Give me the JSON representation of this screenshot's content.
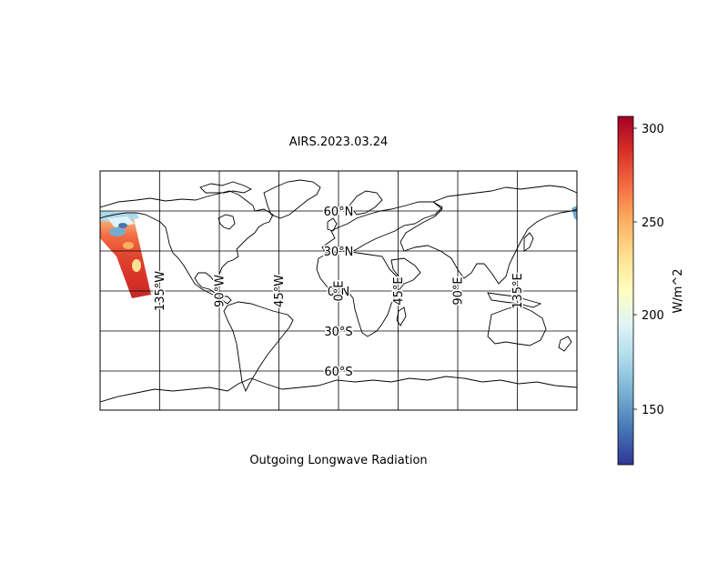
{
  "title": "AIRS.2023.03.24",
  "xlabel": "Outgoing Longwave Radiation",
  "graticule": {
    "lat_labels": [
      "60°N",
      "30°N",
      "0°N",
      "30°S",
      "60°S"
    ],
    "lon_labels": [
      "135°W",
      "90°W",
      "45°W",
      "0°E",
      "45°E",
      "90°E",
      "135°E"
    ]
  },
  "colorbar": {
    "label": "W/m^2",
    "ticks": [
      "150",
      "200",
      "250",
      "300"
    ],
    "range": [
      118,
      306
    ],
    "colormap": [
      "#313695",
      "#4575b4",
      "#74add1",
      "#abd9e9",
      "#e0f3f8",
      "#ffffbf",
      "#fee090",
      "#fdae61",
      "#f46d43",
      "#d73027",
      "#a50026"
    ]
  },
  "chart_data": {
    "type": "heatmap",
    "title": "AIRS.2023.03.24",
    "xlabel": "Outgoing Longwave Radiation",
    "colorbar_label": "W/m^2",
    "value_range": [
      118,
      306
    ],
    "projection": "PlateCarree",
    "extent": {
      "lon": [
        -180,
        180
      ],
      "lat": [
        -90,
        90
      ]
    }
  }
}
